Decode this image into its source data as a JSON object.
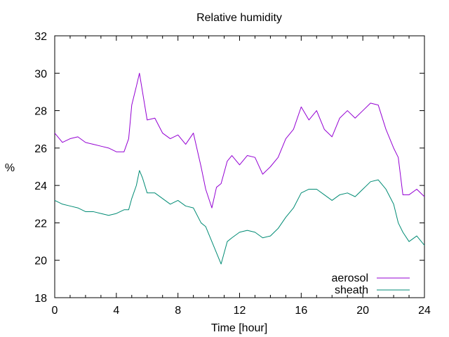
{
  "chart_data": {
    "type": "line",
    "title": "Relative humidity",
    "xlabel": "Time [hour]",
    "ylabel": "%",
    "xlim": [
      0,
      24
    ],
    "ylim": [
      18,
      32
    ],
    "xticks": [
      0,
      4,
      8,
      12,
      16,
      20,
      24
    ],
    "yticks": [
      18,
      20,
      22,
      24,
      26,
      28,
      30,
      32
    ],
    "legend_position": "bottom-right",
    "grid": false,
    "series": [
      {
        "name": "aerosol",
        "color": "#9400d3",
        "x": [
          0,
          0.5,
          1,
          1.5,
          2,
          2.5,
          3,
          3.5,
          4,
          4.5,
          4.8,
          5.0,
          5.3,
          5.5,
          5.7,
          6.0,
          6.5,
          7,
          7.5,
          8,
          8.5,
          9,
          9.5,
          9.8,
          10.2,
          10.5,
          10.8,
          11.2,
          11.5,
          12,
          12.5,
          13,
          13.5,
          14,
          14.5,
          15,
          15.5,
          16,
          16.5,
          17,
          17.5,
          18,
          18.5,
          19,
          19.5,
          20,
          20.5,
          21,
          21.5,
          22,
          22.3,
          22.6,
          23,
          23.5,
          24
        ],
        "y": [
          26.8,
          26.3,
          26.5,
          26.6,
          26.3,
          26.2,
          26.1,
          26.0,
          25.8,
          25.8,
          26.5,
          28.3,
          29.3,
          30.0,
          29.0,
          27.5,
          27.6,
          26.8,
          26.5,
          26.7,
          26.2,
          26.8,
          25.0,
          23.8,
          22.8,
          23.9,
          24.1,
          25.3,
          25.6,
          25.1,
          25.6,
          25.5,
          24.6,
          25.0,
          25.5,
          26.5,
          27.0,
          28.2,
          27.5,
          28.0,
          27.0,
          26.6,
          27.6,
          28.0,
          27.6,
          28.0,
          28.4,
          28.3,
          27.0,
          26.0,
          25.5,
          23.5,
          23.5,
          23.8,
          23.4
        ]
      },
      {
        "name": "sheath",
        "color": "#008b74",
        "x": [
          0,
          0.5,
          1,
          1.5,
          2,
          2.5,
          3,
          3.5,
          4,
          4.5,
          4.8,
          5.0,
          5.3,
          5.5,
          5.7,
          6.0,
          6.5,
          7,
          7.5,
          8,
          8.5,
          9,
          9.5,
          9.8,
          10.2,
          10.5,
          10.8,
          11.2,
          11.5,
          12,
          12.5,
          13,
          13.5,
          14,
          14.5,
          15,
          15.5,
          16,
          16.5,
          17,
          17.5,
          18,
          18.5,
          19,
          19.5,
          20,
          20.5,
          21,
          21.5,
          22,
          22.3,
          22.6,
          23,
          23.5,
          24
        ],
        "y": [
          23.2,
          23.0,
          22.9,
          22.8,
          22.6,
          22.6,
          22.5,
          22.4,
          22.5,
          22.7,
          22.7,
          23.3,
          24.0,
          24.8,
          24.4,
          23.6,
          23.6,
          23.3,
          23.0,
          23.2,
          22.9,
          22.8,
          22.0,
          21.8,
          21.0,
          20.4,
          19.8,
          21.0,
          21.2,
          21.5,
          21.6,
          21.5,
          21.2,
          21.3,
          21.7,
          22.3,
          22.8,
          23.6,
          23.8,
          23.8,
          23.5,
          23.2,
          23.5,
          23.6,
          23.4,
          23.8,
          24.2,
          24.3,
          23.8,
          23.0,
          22.0,
          21.5,
          21.0,
          21.3,
          20.8
        ]
      }
    ]
  }
}
